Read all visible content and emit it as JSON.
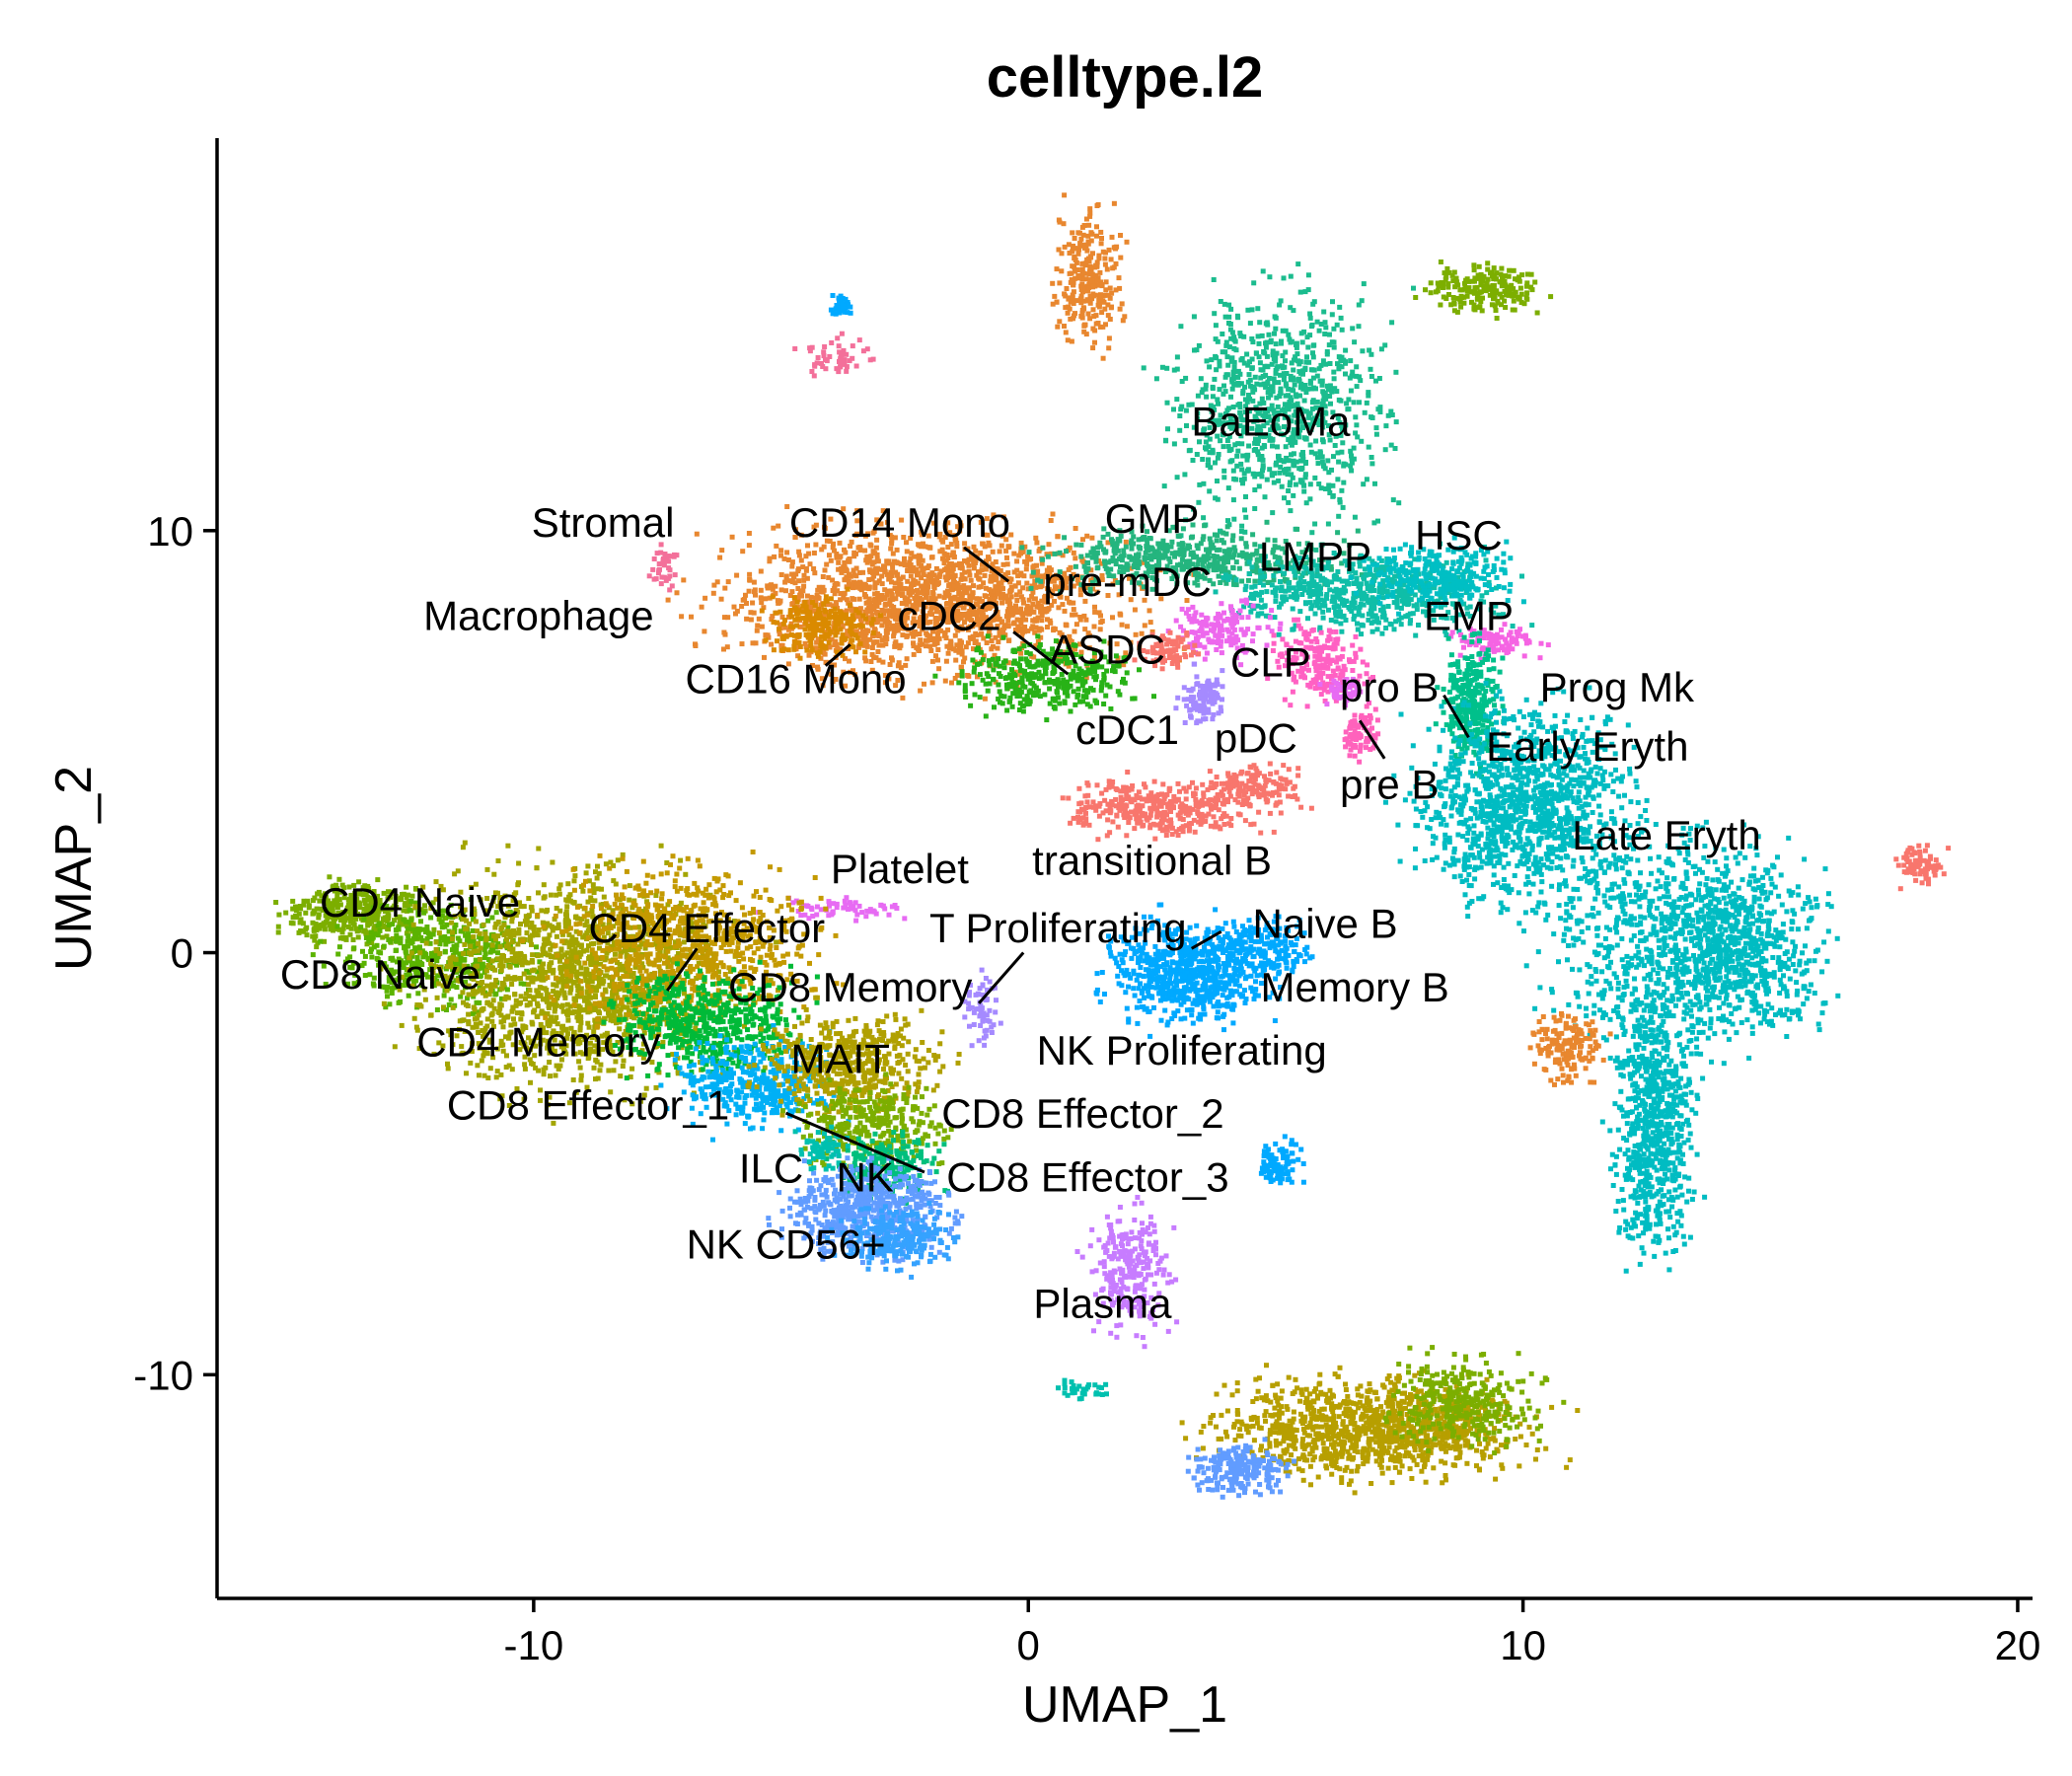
{
  "chart_data": {
    "type": "scatter",
    "title": "celltype.l2",
    "xlabel": "UMAP_1",
    "ylabel": "UMAP_2",
    "xlim": [
      -16.4,
      20.3
    ],
    "ylim": [
      -15.3,
      19.3
    ],
    "xticks": [
      -10,
      0,
      10,
      20
    ],
    "yticks": [
      -10,
      0,
      10
    ],
    "grid": false,
    "legend": "none",
    "clusters": [
      {
        "name": "BaEoMa",
        "color": "#1BBC8E",
        "x": 5.0,
        "y": 13.0,
        "rx": 1.8,
        "ry": 2.3,
        "n": 900
      },
      {
        "name": "BaEoMa",
        "color": "#7CAE00",
        "x": 9.2,
        "y": 15.8,
        "rx": 1.0,
        "ry": 0.5,
        "n": 200
      },
      {
        "name": "Stromal",
        "color": "#F3709A",
        "x": -7.4,
        "y": 9.2,
        "rx": 0.25,
        "ry": 0.4,
        "n": 40
      },
      {
        "name": "Macrophage",
        "color": "#F3709A",
        "x": -4.0,
        "y": 14.2,
        "rx": 0.6,
        "ry": 0.4,
        "n": 50
      },
      {
        "name": "CD14 Mono",
        "color": "#E8872F",
        "x": -2.0,
        "y": 8.4,
        "rx": 3.4,
        "ry": 1.5,
        "n": 1800
      },
      {
        "name": "CD14 Mono",
        "color": "#E8872F",
        "x": 1.2,
        "y": 16.0,
        "rx": 0.6,
        "ry": 1.4,
        "n": 250
      },
      {
        "name": "CD16 Mono",
        "color": "#DA8A00",
        "x": -4.3,
        "y": 7.8,
        "rx": 0.9,
        "ry": 0.6,
        "n": 200
      },
      {
        "name": "cDC2",
        "color": "#28B217",
        "x": 0.3,
        "y": 6.6,
        "rx": 1.5,
        "ry": 0.7,
        "n": 350
      },
      {
        "name": "GMP",
        "color": "#24B57E",
        "x": 3.2,
        "y": 9.4,
        "rx": 2.5,
        "ry": 0.6,
        "n": 500
      },
      {
        "name": "LMPP",
        "color": "#0FBEA8",
        "x": 6.8,
        "y": 8.6,
        "rx": 2.3,
        "ry": 0.8,
        "n": 600
      },
      {
        "name": "HSC",
        "color": "#00BFC4",
        "x": 8.2,
        "y": 9.0,
        "rx": 1.2,
        "ry": 0.6,
        "n": 300
      },
      {
        "name": "pre-mDC",
        "color": "#ED68ED",
        "x": 3.9,
        "y": 7.7,
        "rx": 0.8,
        "ry": 0.6,
        "n": 150
      },
      {
        "name": "ASDC",
        "color": "#F8766D",
        "x": 2.8,
        "y": 7.2,
        "rx": 0.5,
        "ry": 0.4,
        "n": 80
      },
      {
        "name": "cDC1",
        "color": "#A58AFF",
        "x": 3.5,
        "y": 6.1,
        "rx": 0.4,
        "ry": 0.5,
        "n": 100
      },
      {
        "name": "CLP",
        "color": "#FF61C3",
        "x": 5.9,
        "y": 6.9,
        "rx": 0.8,
        "ry": 0.8,
        "n": 200
      },
      {
        "name": "pro B",
        "color": "#FF62BC",
        "x": 6.7,
        "y": 5.3,
        "rx": 0.3,
        "ry": 0.5,
        "n": 80
      },
      {
        "name": "pre B",
        "color": "#E76BF3",
        "x": 6.3,
        "y": 6.3,
        "rx": 0.3,
        "ry": 0.3,
        "n": 50
      },
      {
        "name": "EMP",
        "color": "#F564E3",
        "x": 9.4,
        "y": 7.4,
        "rx": 0.8,
        "ry": 0.3,
        "n": 100
      },
      {
        "name": "Early Eryth",
        "color": "#00C08B",
        "x": 8.9,
        "y": 6.0,
        "rx": 0.5,
        "ry": 1.2,
        "n": 300
      },
      {
        "name": "Late Eryth",
        "color": "#00BCC2",
        "x": 10.0,
        "y": 3.6,
        "rx": 1.8,
        "ry": 2.0,
        "n": 1200
      },
      {
        "name": "Late Eryth",
        "color": "#00BCC2",
        "x": 13.0,
        "y": 0.3,
        "rx": 2.0,
        "ry": 2.2,
        "n": 800
      },
      {
        "name": "Late Eryth",
        "color": "#00BCC2",
        "x": 12.6,
        "y": -4.0,
        "rx": 0.7,
        "ry": 2.6,
        "n": 700
      },
      {
        "name": "Late Eryth",
        "color": "#00BCC2",
        "x": 14.5,
        "y": 0.2,
        "rx": 1.3,
        "ry": 1.8,
        "n": 500
      },
      {
        "name": "Prog Mk",
        "color": "#F8766D",
        "x": 18.0,
        "y": 2.1,
        "rx": 0.4,
        "ry": 0.4,
        "n": 80
      },
      {
        "name": "Late Eryth",
        "color": "#E8872F",
        "x": 10.9,
        "y": -2.2,
        "rx": 0.6,
        "ry": 0.7,
        "n": 150
      },
      {
        "name": "transitional B",
        "color": "#F8766D",
        "x": 2.6,
        "y": 3.5,
        "rx": 1.6,
        "ry": 0.6,
        "n": 350
      },
      {
        "name": "pDC",
        "color": "#F8766D",
        "x": 4.5,
        "y": 4.0,
        "rx": 0.8,
        "ry": 0.5,
        "n": 150
      },
      {
        "name": "Naive B",
        "color": "#00A9FF",
        "x": 3.3,
        "y": -0.4,
        "rx": 1.4,
        "ry": 1.0,
        "n": 700
      },
      {
        "name": "Memory B",
        "color": "#00A9FF",
        "x": 4.8,
        "y": 0.2,
        "rx": 0.7,
        "ry": 0.6,
        "n": 150
      },
      {
        "name": "Plasma",
        "color": "#C77CFF",
        "x": 2.0,
        "y": -7.5,
        "rx": 0.7,
        "ry": 1.2,
        "n": 250
      },
      {
        "name": "NK Proliferating",
        "color": "#00A9FF",
        "x": 5.0,
        "y": -4.9,
        "rx": 0.4,
        "ry": 0.5,
        "n": 80
      },
      {
        "name": "Platelet",
        "color": "#E76BF3",
        "x": -3.8,
        "y": 1.1,
        "rx": 1.2,
        "ry": 0.2,
        "n": 60
      },
      {
        "name": "T Proliferating",
        "color": "#A58AFF",
        "x": -1.0,
        "y": -1.3,
        "rx": 0.3,
        "ry": 0.8,
        "n": 60
      },
      {
        "name": "CD4 Naive",
        "color": "#7CAE00",
        "x": -13.6,
        "y": 1.0,
        "rx": 1.3,
        "ry": 0.6,
        "n": 400
      },
      {
        "name": "CD8 Naive",
        "color": "#5BB300",
        "x": -12.0,
        "y": 0.0,
        "rx": 1.6,
        "ry": 1.0,
        "n": 500
      },
      {
        "name": "CD4 Memory",
        "color": "#A3A500",
        "x": -9.2,
        "y": -0.6,
        "rx": 2.6,
        "ry": 2.2,
        "n": 1500
      },
      {
        "name": "CD4 Effector",
        "color": "#C49A00",
        "x": -7.0,
        "y": 0.3,
        "rx": 2.2,
        "ry": 1.5,
        "n": 800
      },
      {
        "name": "CD8 Memory",
        "color": "#00BA38",
        "x": -6.5,
        "y": -1.6,
        "rx": 1.6,
        "ry": 1.0,
        "n": 500
      },
      {
        "name": "CD8 Effector_1",
        "color": "#00B0F6",
        "x": -5.6,
        "y": -3.0,
        "rx": 1.3,
        "ry": 0.9,
        "n": 400
      },
      {
        "name": "MAIT",
        "color": "#B0A000",
        "x": -3.6,
        "y": -2.6,
        "rx": 1.5,
        "ry": 1.0,
        "n": 500
      },
      {
        "name": "CD8 Effector_2",
        "color": "#7CAE00",
        "x": -3.2,
        "y": -4.0,
        "rx": 1.2,
        "ry": 0.8,
        "n": 300
      },
      {
        "name": "CD8 Effector_3",
        "color": "#00BF7D",
        "x": -2.9,
        "y": -5.0,
        "rx": 0.9,
        "ry": 0.6,
        "n": 200
      },
      {
        "name": "NK",
        "color": "#619CFF",
        "x": -3.3,
        "y": -6.0,
        "rx": 1.4,
        "ry": 0.9,
        "n": 600
      },
      {
        "name": "NK CD56+",
        "color": "#35A2FF",
        "x": -2.7,
        "y": -6.7,
        "rx": 0.9,
        "ry": 0.6,
        "n": 250
      },
      {
        "name": "ILC",
        "color": "#00C0AF",
        "x": -4.2,
        "y": -4.6,
        "rx": 0.4,
        "ry": 0.4,
        "n": 60
      },
      {
        "name": "CD4 Naive",
        "color": "#B79F00",
        "x": 7.0,
        "y": -11.2,
        "rx": 2.6,
        "ry": 1.0,
        "n": 1100
      },
      {
        "name": "CD8 Naive",
        "color": "#7CAE00",
        "x": 8.8,
        "y": -10.6,
        "rx": 1.3,
        "ry": 0.9,
        "n": 300
      },
      {
        "name": "NK",
        "color": "#619CFF",
        "x": 4.2,
        "y": -12.2,
        "rx": 0.8,
        "ry": 0.5,
        "n": 200
      },
      {
        "name": "Plasma",
        "color": "#00C0AF",
        "x": 1.0,
        "y": -10.3,
        "rx": 0.6,
        "ry": 0.2,
        "n": 30
      },
      {
        "name": "BaEoMa",
        "color": "#00A9FF",
        "x": -3.8,
        "y": 15.4,
        "rx": 0.2,
        "ry": 0.2,
        "n": 40
      }
    ],
    "labels": [
      {
        "text": "BaEoMa",
        "x": 4.9,
        "y": 12.6
      },
      {
        "text": "Stromal",
        "x": -8.6,
        "y": 10.2
      },
      {
        "text": "CD14 Mono",
        "x": -2.6,
        "y": 10.2
      },
      {
        "text": "GMP",
        "x": 2.5,
        "y": 10.3
      },
      {
        "text": "HSC",
        "x": 8.7,
        "y": 9.9
      },
      {
        "text": "LMPP",
        "x": 5.8,
        "y": 9.4
      },
      {
        "text": "pre-mDC",
        "x": 2.0,
        "y": 8.8
      },
      {
        "text": "Macrophage",
        "x": -9.9,
        "y": 8.0
      },
      {
        "text": "cDC2",
        "x": -1.6,
        "y": 8.0
      },
      {
        "text": "EMP",
        "x": 8.9,
        "y": 8.0
      },
      {
        "text": "ASDC",
        "x": 1.6,
        "y": 7.2
      },
      {
        "text": "CLP",
        "x": 4.9,
        "y": 6.9
      },
      {
        "text": "CD16 Mono",
        "x": -4.7,
        "y": 6.5
      },
      {
        "text": "pro B",
        "x": 7.3,
        "y": 6.3
      },
      {
        "text": "Prog Mk",
        "x": 11.9,
        "y": 6.3
      },
      {
        "text": "cDC1",
        "x": 2.0,
        "y": 5.3
      },
      {
        "text": "pDC",
        "x": 4.6,
        "y": 5.1
      },
      {
        "text": "Early Eryth",
        "x": 11.3,
        "y": 4.9
      },
      {
        "text": "pre B",
        "x": 7.3,
        "y": 4.0
      },
      {
        "text": "Late Eryth",
        "x": 12.9,
        "y": 2.8
      },
      {
        "text": "transitional B",
        "x": 2.5,
        "y": 2.2
      },
      {
        "text": "Platelet",
        "x": -2.6,
        "y": 2.0
      },
      {
        "text": "CD4 Naive",
        "x": -12.3,
        "y": 1.2
      },
      {
        "text": "CD4 Effector",
        "x": -6.5,
        "y": 0.6
      },
      {
        "text": "T Proliferating",
        "x": 0.6,
        "y": 0.6
      },
      {
        "text": "Naive B",
        "x": 6.0,
        "y": 0.7
      },
      {
        "text": "CD8 Naive",
        "x": -13.1,
        "y": -0.5
      },
      {
        "text": "CD8 Memory",
        "x": -3.6,
        "y": -0.8
      },
      {
        "text": "Memory B",
        "x": 6.6,
        "y": -0.8
      },
      {
        "text": "CD4 Memory",
        "x": -9.9,
        "y": -2.1
      },
      {
        "text": "NK Proliferating",
        "x": 3.1,
        "y": -2.3
      },
      {
        "text": "MAIT",
        "x": -3.8,
        "y": -2.5
      },
      {
        "text": "CD8 Effector_1",
        "x": -8.9,
        "y": -3.6
      },
      {
        "text": "CD8 Effector_2",
        "x": 1.1,
        "y": -3.8
      },
      {
        "text": "ILC",
        "x": -5.2,
        "y": -5.1
      },
      {
        "text": "NK",
        "x": -3.3,
        "y": -5.3
      },
      {
        "text": "CD8 Effector_3",
        "x": 1.2,
        "y": -5.3
      },
      {
        "text": "NK CD56+",
        "x": -4.9,
        "y": -6.9
      },
      {
        "text": "Plasma",
        "x": 1.5,
        "y": -8.3
      }
    ],
    "leaders": [
      [
        -1.3,
        9.6,
        -0.4,
        8.8
      ],
      [
        -0.3,
        7.6,
        0.8,
        6.6
      ],
      [
        -3.6,
        7.3,
        -4.1,
        6.8
      ],
      [
        8.4,
        6.1,
        8.9,
        5.1
      ],
      [
        6.7,
        5.5,
        7.2,
        4.6
      ],
      [
        -6.7,
        0.1,
        -7.3,
        -0.9
      ],
      [
        -0.1,
        0.0,
        -1.0,
        -1.2
      ],
      [
        3.3,
        0.1,
        3.9,
        0.5
      ],
      [
        -4.9,
        -3.8,
        -2.1,
        -5.2
      ]
    ]
  }
}
